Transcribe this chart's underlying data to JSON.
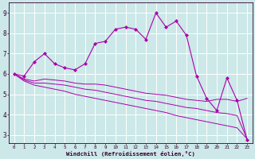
{
  "xlabel": "Windchill (Refroidissement éolien,°C)",
  "bg_color": "#cce8e8",
  "line_color": "#aa00aa",
  "xlim": [
    -0.5,
    23.5
  ],
  "ylim": [
    2.6,
    9.5
  ],
  "yticks": [
    3,
    4,
    5,
    6,
    7,
    8,
    9
  ],
  "xticks": [
    0,
    1,
    2,
    3,
    4,
    5,
    6,
    7,
    8,
    9,
    10,
    11,
    12,
    13,
    14,
    15,
    16,
    17,
    18,
    19,
    20,
    21,
    22,
    23
  ],
  "series_upper": [
    6.0,
    5.9,
    6.6,
    7.0,
    6.5,
    6.3,
    6.2,
    6.5,
    7.5,
    7.6,
    8.2,
    8.3,
    8.2,
    7.7,
    9.0,
    8.3,
    8.6,
    7.9,
    5.9,
    4.8,
    4.2,
    5.8,
    4.7,
    2.75
  ],
  "series_mid1": [
    6.0,
    5.75,
    5.65,
    5.75,
    5.7,
    5.65,
    5.55,
    5.5,
    5.5,
    5.45,
    5.35,
    5.25,
    5.15,
    5.05,
    5.0,
    4.95,
    4.85,
    4.75,
    4.7,
    4.65,
    4.75,
    4.75,
    4.65,
    4.8
  ],
  "series_mid2": [
    6.0,
    5.7,
    5.55,
    5.55,
    5.5,
    5.45,
    5.35,
    5.25,
    5.2,
    5.1,
    5.0,
    4.9,
    4.8,
    4.7,
    4.65,
    4.55,
    4.45,
    4.35,
    4.3,
    4.2,
    4.1,
    4.05,
    3.95,
    2.8
  ],
  "series_low": [
    6.0,
    5.65,
    5.45,
    5.35,
    5.25,
    5.15,
    5.0,
    4.9,
    4.8,
    4.7,
    4.6,
    4.5,
    4.4,
    4.3,
    4.2,
    4.1,
    3.95,
    3.85,
    3.75,
    3.65,
    3.55,
    3.45,
    3.35,
    2.8
  ]
}
